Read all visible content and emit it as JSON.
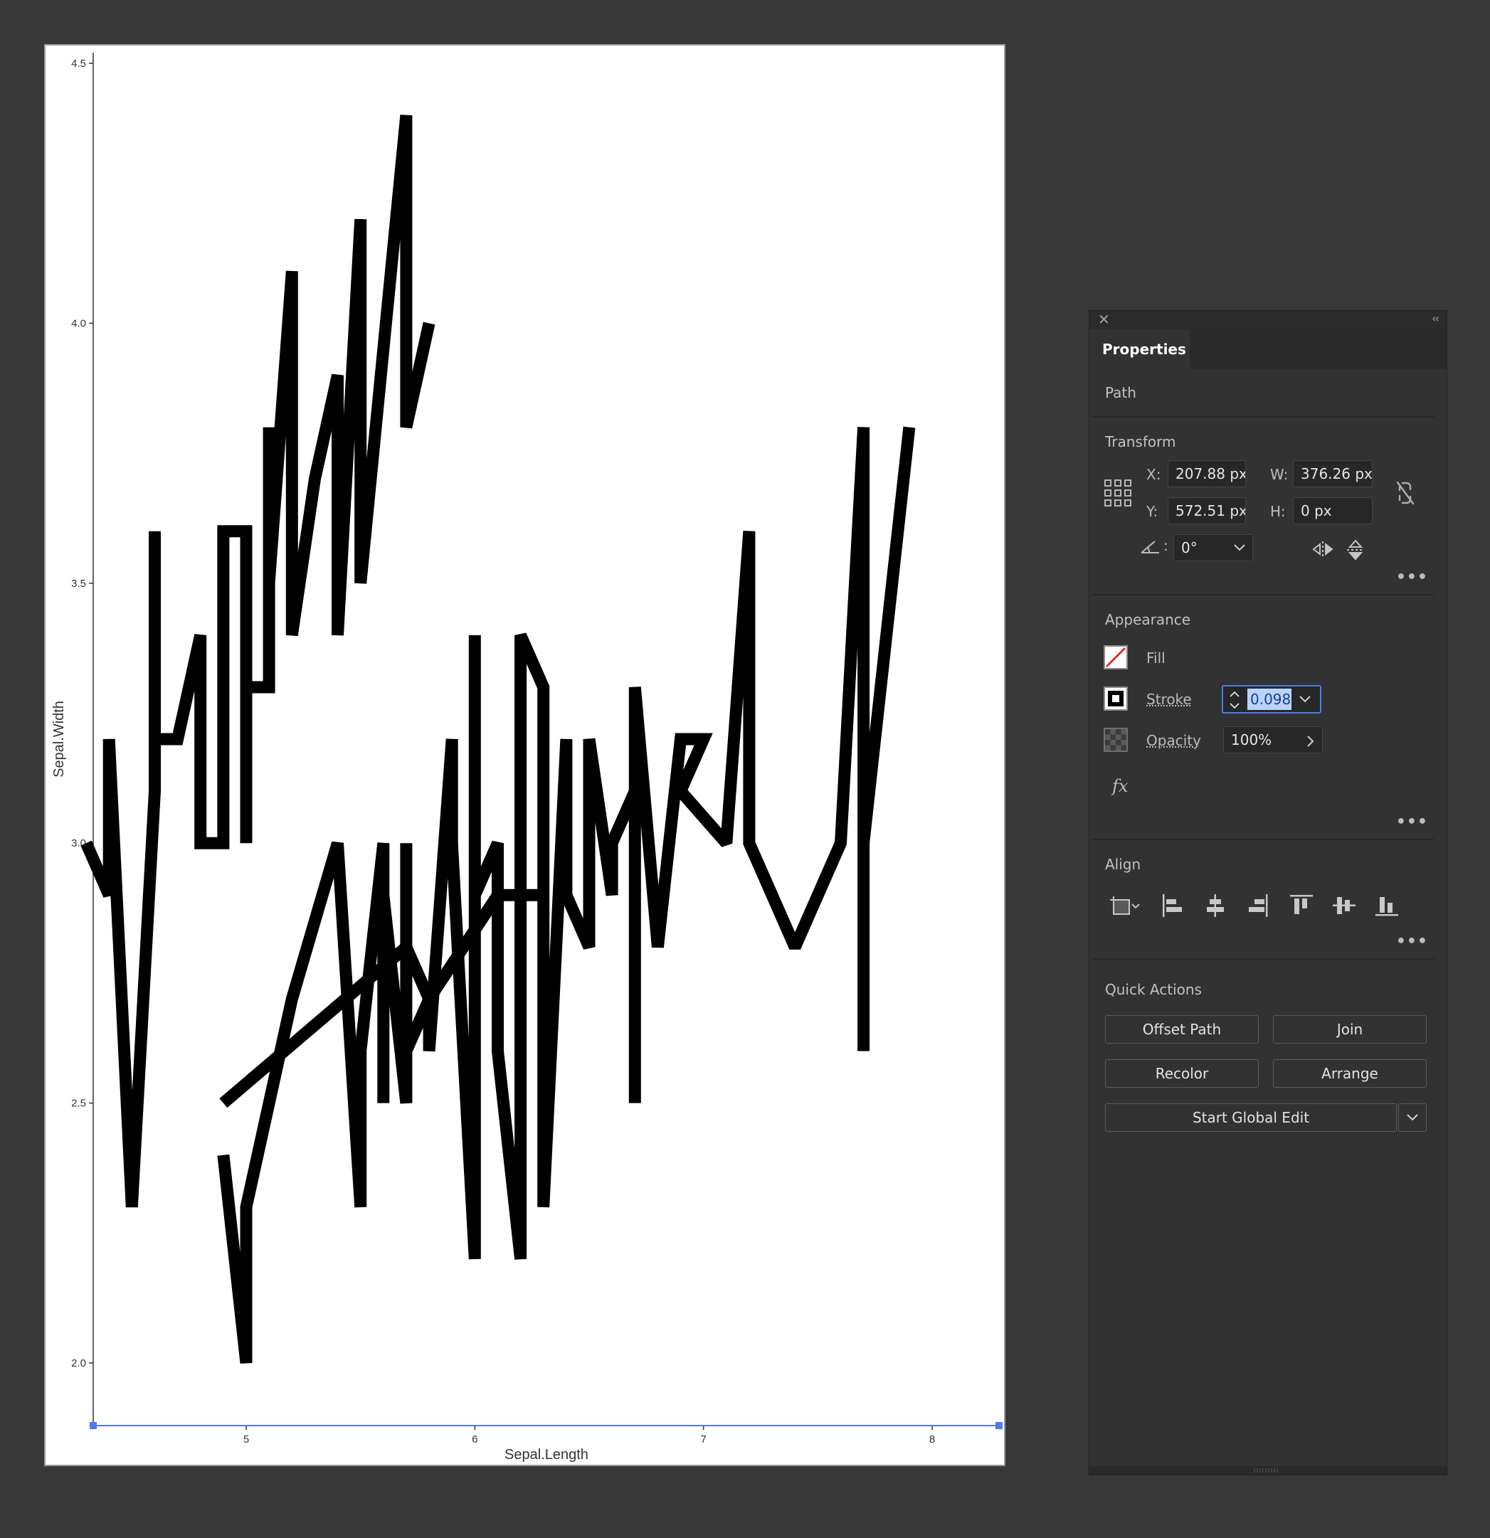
{
  "chart_data": {
    "type": "line",
    "xlabel": "Sepal.Length",
    "ylabel": "Sepal.Width",
    "xlim": [
      4.2,
      8.1
    ],
    "ylim": [
      1.9,
      4.53
    ],
    "x_ticks": [
      "5",
      "6",
      "7",
      "8"
    ],
    "y_ticks": [
      "2.0",
      "2.5",
      "3.0",
      "3.5",
      "4.0",
      "4.5"
    ],
    "line_color": "#000000",
    "selection_color": "#4d7bf0",
    "series": [
      {
        "points": [
          [
            4.3,
            3.0
          ],
          [
            4.4,
            2.9
          ],
          [
            4.4,
            3.2
          ],
          [
            4.5,
            2.3
          ],
          [
            4.6,
            3.1
          ],
          [
            4.6,
            3.6
          ],
          [
            4.6,
            3.2
          ],
          [
            4.7,
            3.2
          ],
          [
            4.8,
            3.4
          ],
          [
            4.8,
            3.0
          ],
          [
            4.9,
            3.0
          ],
          [
            4.9,
            3.6
          ],
          [
            5.0,
            3.6
          ],
          [
            5.0,
            3.0
          ],
          [
            5.0,
            3.4
          ],
          [
            5.0,
            3.3
          ],
          [
            5.1,
            3.3
          ],
          [
            5.1,
            3.8
          ],
          [
            5.1,
            3.5
          ],
          [
            5.2,
            4.1
          ],
          [
            5.2,
            3.4
          ],
          [
            5.3,
            3.7
          ],
          [
            5.4,
            3.9
          ],
          [
            5.4,
            3.4
          ],
          [
            5.5,
            4.2
          ],
          [
            5.5,
            3.5
          ],
          [
            5.7,
            4.4
          ],
          [
            5.7,
            3.8
          ],
          [
            5.8,
            4.0
          ]
        ]
      },
      {
        "points": [
          [
            4.9,
            2.4
          ],
          [
            5.0,
            2.0
          ],
          [
            5.0,
            2.3
          ],
          [
            5.2,
            2.7
          ],
          [
            5.4,
            3.0
          ],
          [
            5.5,
            2.3
          ],
          [
            5.5,
            2.6
          ],
          [
            5.6,
            3.0
          ],
          [
            5.6,
            2.5
          ],
          [
            5.6,
            2.9
          ],
          [
            5.7,
            2.5
          ],
          [
            5.7,
            3.0
          ],
          [
            5.7,
            2.6
          ],
          [
            5.8,
            2.7
          ],
          [
            5.8,
            2.6
          ],
          [
            5.9,
            3.2
          ],
          [
            5.9,
            3.0
          ],
          [
            6.0,
            2.2
          ],
          [
            6.0,
            3.4
          ],
          [
            6.0,
            2.9
          ],
          [
            6.1,
            3.0
          ],
          [
            6.1,
            2.6
          ],
          [
            6.2,
            2.2
          ],
          [
            6.2,
            3.4
          ],
          [
            6.3,
            3.3
          ],
          [
            6.3,
            2.3
          ],
          [
            6.4,
            3.2
          ],
          [
            6.4,
            2.9
          ],
          [
            6.5,
            2.8
          ],
          [
            6.5,
            3.2
          ],
          [
            6.6,
            2.9
          ],
          [
            6.6,
            3.0
          ],
          [
            6.7,
            3.1
          ],
          [
            6.7,
            2.5
          ],
          [
            6.7,
            3.3
          ],
          [
            6.8,
            2.8
          ],
          [
            6.9,
            3.2
          ],
          [
            7.0,
            3.2
          ],
          [
            6.9,
            3.1
          ],
          [
            7.1,
            3.0
          ],
          [
            7.2,
            3.6
          ],
          [
            7.2,
            3.0
          ],
          [
            7.4,
            2.8
          ],
          [
            7.6,
            3.0
          ],
          [
            7.7,
            3.8
          ],
          [
            7.7,
            2.6
          ],
          [
            7.7,
            3.0
          ],
          [
            7.9,
            3.8
          ]
        ]
      },
      {
        "points": [
          [
            4.9,
            2.5
          ],
          [
            5.7,
            2.8
          ],
          [
            5.8,
            2.7
          ],
          [
            6.1,
            2.9
          ],
          [
            6.3,
            2.9
          ]
        ]
      }
    ]
  },
  "panel": {
    "close_icon": "✕",
    "collapse_icon": "‹‹",
    "tab_label": "Properties",
    "object_type": "Path",
    "transform": {
      "title": "Transform",
      "x_label": "X:",
      "x_value": "207.88 px",
      "y_label": "Y:",
      "y_value": "572.51 px",
      "w_label": "W:",
      "w_value": "376.26 px",
      "h_label": "H:",
      "h_value": "0 px",
      "angle_label": ":",
      "angle_value": "0°"
    },
    "more": "•••",
    "appearance": {
      "title": "Appearance",
      "fill_label": "Fill",
      "stroke_label": "Stroke",
      "stroke_value": "0.098",
      "opacity_label": "Opacity",
      "opacity_value": "100%",
      "fx_label": "fx"
    },
    "align": {
      "title": "Align"
    },
    "quick_actions": {
      "title": "Quick Actions",
      "offset_path": "Offset Path",
      "join": "Join",
      "recolor": "Recolor",
      "arrange": "Arrange",
      "start_global_edit": "Start Global Edit"
    },
    "accent_color": "#4d7bf0"
  }
}
